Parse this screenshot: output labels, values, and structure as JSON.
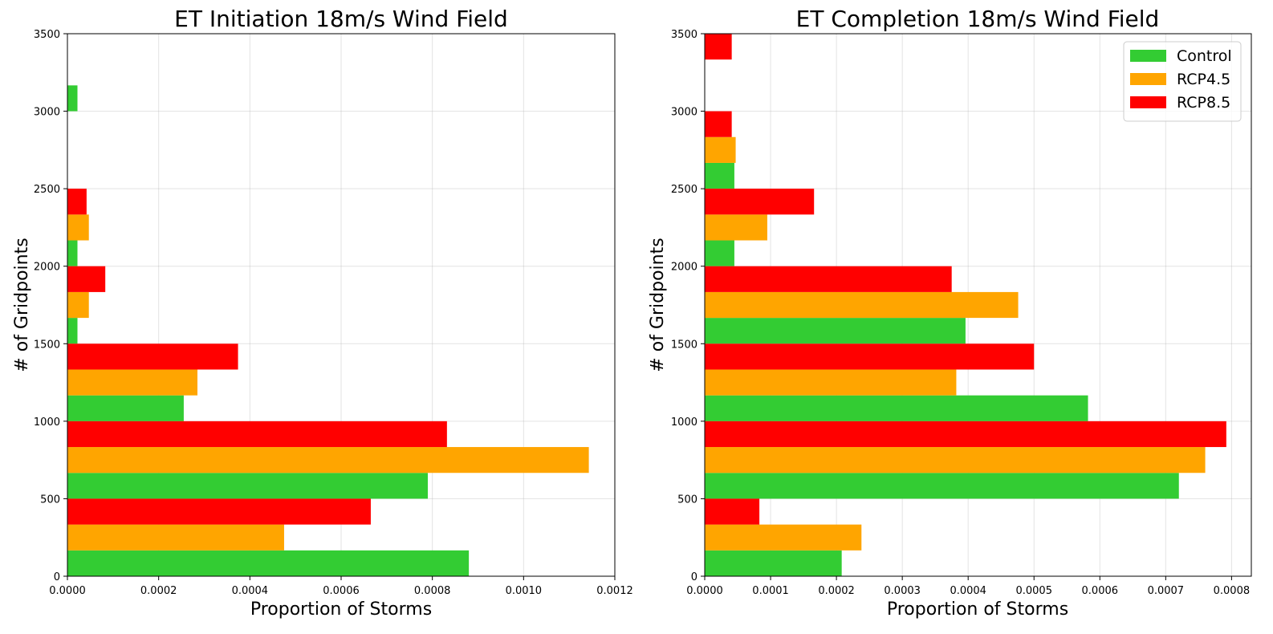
{
  "chart_data": [
    {
      "type": "bar",
      "orientation": "horizontal",
      "title": "ET Initiation 18m/s Wind Field",
      "xlabel": "Proportion of Storms",
      "ylabel": "# of Gridpoints",
      "xlim": [
        0,
        0.0012
      ],
      "ylim": [
        0,
        3500
      ],
      "xticks": [
        "0.0000",
        "0.0002",
        "0.0004",
        "0.0006",
        "0.0008",
        "0.0010",
        "0.0012"
      ],
      "xtick_values": [
        0,
        0.0002,
        0.0004,
        0.0006,
        0.0008,
        0.001,
        0.0012
      ],
      "yticks": [
        "0",
        "500",
        "1000",
        "1500",
        "2000",
        "2500",
        "3000",
        "3500"
      ],
      "ytick_values": [
        0,
        500,
        1000,
        1500,
        2000,
        2500,
        3000,
        3500
      ],
      "grid": true,
      "legend": false,
      "bins": [
        0,
        500,
        1000,
        1500,
        2000,
        2500,
        3000
      ],
      "bin_width": 500,
      "series": [
        {
          "name": "Control",
          "color": "#33cc33",
          "values": [
            0.00088,
            0.00079,
            0.000255,
            2.2e-05,
            2.2e-05,
            0,
            2.2e-05
          ]
        },
        {
          "name": "RCP4.5",
          "color": "#ffa500",
          "values": [
            0.000475,
            0.001143,
            0.000285,
            4.7e-05,
            4.7e-05,
            0,
            0
          ]
        },
        {
          "name": "RCP8.5",
          "color": "#ff0000",
          "values": [
            0.000665,
            0.000832,
            0.000374,
            8.3e-05,
            4.2e-05,
            0,
            0
          ]
        }
      ]
    },
    {
      "type": "bar",
      "orientation": "horizontal",
      "title": "ET Completion 18m/s Wind Field",
      "xlabel": "Proportion of Storms",
      "ylabel": "# of Gridpoints",
      "xlim": [
        0,
        0.00083
      ],
      "ylim": [
        0,
        3500
      ],
      "xticks": [
        "0.0000",
        "0.0001",
        "0.0002",
        "0.0003",
        "0.0004",
        "0.0005",
        "0.0006",
        "0.0007",
        "0.0008"
      ],
      "xtick_values": [
        0,
        0.0001,
        0.0002,
        0.0003,
        0.0004,
        0.0005,
        0.0006,
        0.0007,
        0.0008
      ],
      "yticks": [
        "0",
        "500",
        "1000",
        "1500",
        "2000",
        "2500",
        "3000",
        "3500"
      ],
      "ytick_values": [
        0,
        500,
        1000,
        1500,
        2000,
        2500,
        3000,
        3500
      ],
      "grid": true,
      "legend": true,
      "legend_position": "top-right",
      "bins": [
        0,
        500,
        1000,
        1500,
        2000,
        2500,
        3000
      ],
      "bin_width": 500,
      "series": [
        {
          "name": "Control",
          "color": "#33cc33",
          "values": [
            0.000208,
            0.00072,
            0.000582,
            0.000396,
            4.5e-05,
            4.5e-05,
            0
          ]
        },
        {
          "name": "RCP4.5",
          "color": "#ffa500",
          "values": [
            0.000238,
            0.00076,
            0.000382,
            0.000476,
            9.5e-05,
            4.7e-05,
            0
          ]
        },
        {
          "name": "RCP8.5",
          "color": "#ff0000",
          "values": [
            8.3e-05,
            0.000792,
            0.0005,
            0.000375,
            0.000166,
            4.1e-05,
            4.1e-05
          ]
        }
      ]
    }
  ]
}
